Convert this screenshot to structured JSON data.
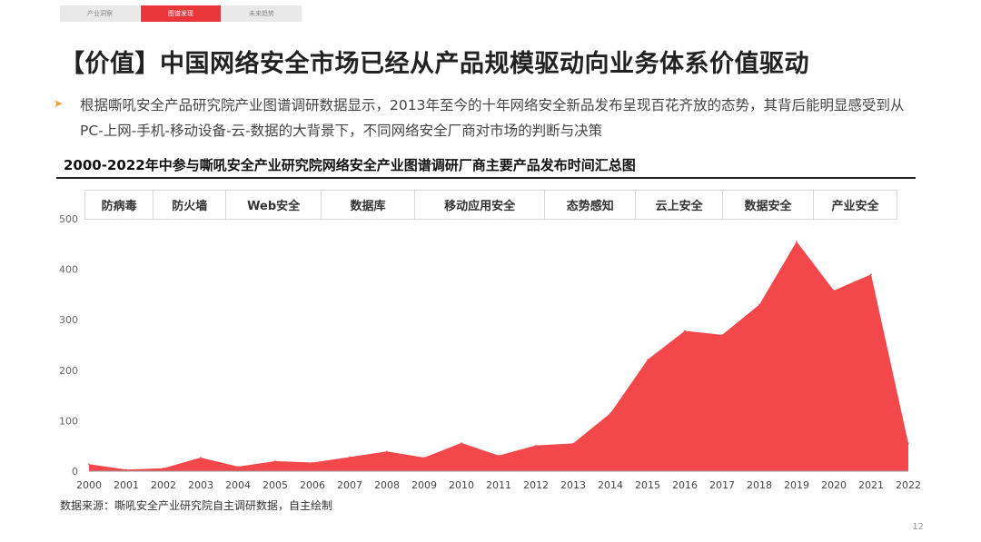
{
  "nav": {
    "tabs": [
      {
        "label": "产业洞察",
        "active": false
      },
      {
        "label": "图谱发现",
        "active": true
      },
      {
        "label": "未来趋势",
        "active": false
      }
    ]
  },
  "title": "【价值】中国网络安全市场已经从产品规模驱动向业务体系价值驱动",
  "bullet": {
    "line1": "根据嘶吼安全产品研究院产业图谱调研数据显示，2013年至今的十年网络安全新品发布呈现百花齐放的态势，其背后能明显感受到从",
    "line2": "PC-上网-手机-移动设备-云-数据的大背景下，不同网络安全厂商对市场的判断与决策"
  },
  "categories": [
    "防病毒",
    "防火墙",
    "Web安全",
    "数据库",
    "移动应用安全",
    "态势感知",
    "云上安全",
    "数据安全",
    "产业安全"
  ],
  "chart_data": {
    "type": "area",
    "title": "2000-2022年中参与嘶吼安全产业研究院网络安全产业图谱调研厂商主要产品发布时间汇总图",
    "x": [
      "2000",
      "2001",
      "2002",
      "2003",
      "2004",
      "2005",
      "2006",
      "2007",
      "2008",
      "2009",
      "2010",
      "2011",
      "2012",
      "2013",
      "2014",
      "2015",
      "2016",
      "2017",
      "2018",
      "2019",
      "2020",
      "2021",
      "2022"
    ],
    "values": [
      14,
      3,
      6,
      27,
      9,
      20,
      17,
      28,
      39,
      27,
      56,
      31,
      51,
      55,
      115,
      221,
      278,
      270,
      330,
      455,
      358,
      390,
      55
    ],
    "yticks": [
      0,
      100,
      200,
      300,
      400,
      500
    ],
    "ylim": [
      0,
      500
    ],
    "color": "#f2474b",
    "grid": false
  },
  "source": "数据来源：嘶吼安全产业研究院自主调研数据，自主绘制",
  "page_number": "12"
}
